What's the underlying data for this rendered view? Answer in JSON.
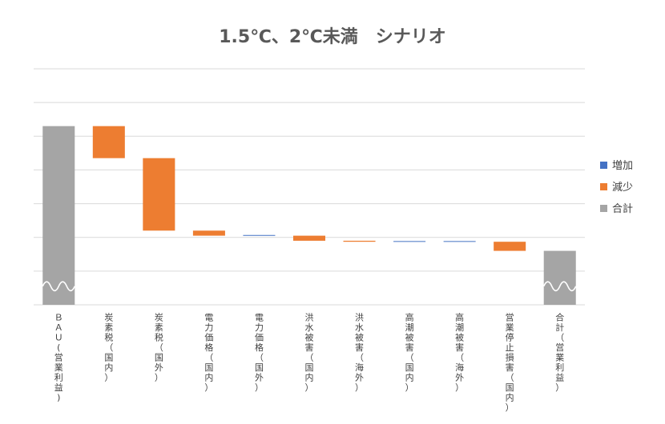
{
  "chart_data": {
    "type": "bar",
    "subtype": "waterfall",
    "title": "1.5℃、2℃未満　シナリオ",
    "categories": [
      "ＢＡＵ(営業利益)",
      "炭素税（国内）",
      "炭素税（国外）",
      "電力価格（国内）",
      "電力価格（国外）",
      "洪水被害（国内）",
      "洪水被害（海外）",
      "高潮被害（国内）",
      "高潮被害（海外）",
      "営業停止損害（国内）",
      "合計（営業利益）"
    ],
    "bars": [
      {
        "kind": "total",
        "start": 0.0,
        "end": 5.3
      },
      {
        "kind": "decrease",
        "start": 5.3,
        "end": 4.35
      },
      {
        "kind": "decrease",
        "start": 4.35,
        "end": 2.2
      },
      {
        "kind": "decrease",
        "start": 2.2,
        "end": 2.05
      },
      {
        "kind": "increase",
        "start": 2.05,
        "end": 2.07
      },
      {
        "kind": "decrease",
        "start": 2.05,
        "end": 1.9
      },
      {
        "kind": "decrease",
        "start": 1.9,
        "end": 1.87
      },
      {
        "kind": "increase",
        "start": 1.87,
        "end": 1.89
      },
      {
        "kind": "increase",
        "start": 1.87,
        "end": 1.89
      },
      {
        "kind": "decrease",
        "start": 1.87,
        "end": 1.6
      },
      {
        "kind": "total",
        "start": 0.0,
        "end": 1.6
      }
    ],
    "ylim": [
      0,
      7
    ],
    "grid": true,
    "axis_break": true,
    "legend": {
      "position": "right",
      "items": [
        {
          "key": "increase",
          "label": "増加"
        },
        {
          "key": "decrease",
          "label": "減少"
        },
        {
          "key": "total",
          "label": "合計"
        }
      ]
    },
    "colors": {
      "increase": "#4472C4",
      "decrease": "#ED7D31",
      "total": "#A5A5A5",
      "grid": "#D9D9D9",
      "break": "#ffffff"
    }
  }
}
